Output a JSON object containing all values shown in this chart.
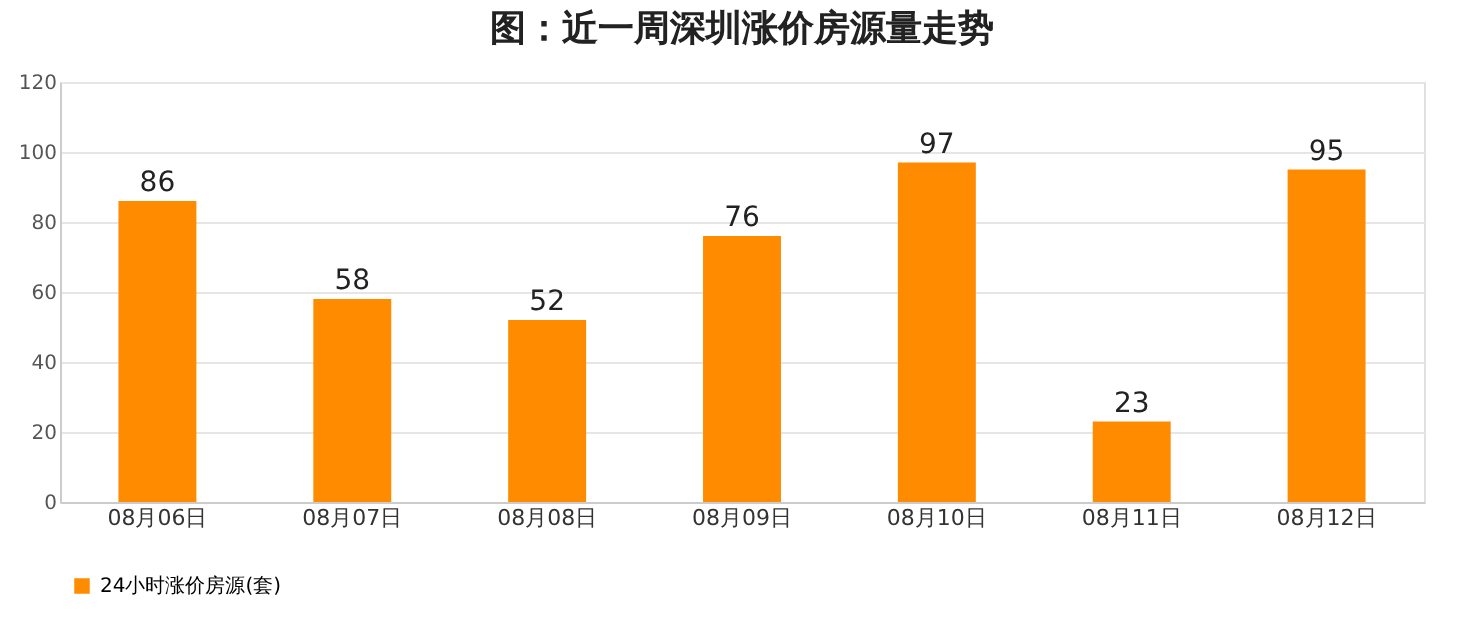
{
  "chart_data": {
    "type": "bar",
    "title": "图：近一周深圳涨价房源量走势",
    "categories": [
      "08月06日",
      "08月07日",
      "08月08日",
      "08月09日",
      "08月10日",
      "08月11日",
      "08月12日"
    ],
    "series": [
      {
        "name": "24小时涨价房源(套)",
        "color": "#ff8c00",
        "values": [
          86,
          58,
          52,
          76,
          97,
          23,
          95
        ]
      }
    ],
    "ylim": [
      0,
      120
    ],
    "yticks": [
      0,
      20,
      40,
      60,
      80,
      100,
      120
    ],
    "grid": "y",
    "legend": "bottom",
    "data_labels": true
  }
}
